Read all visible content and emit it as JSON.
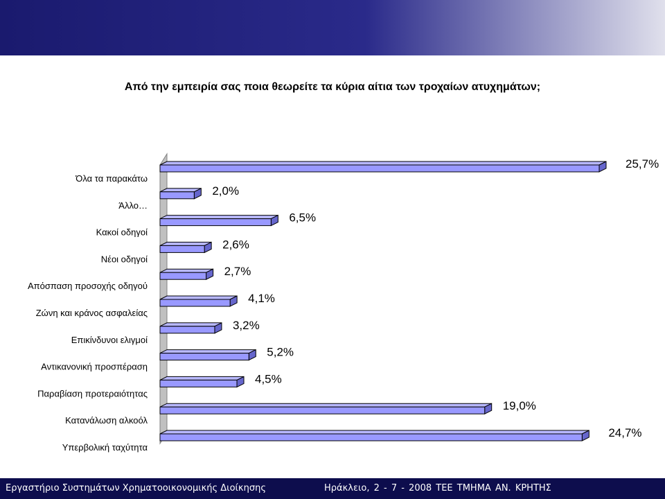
{
  "header": {
    "title": "Από την εμπειρία σας ποια θεωρείτε τα κύρια αίτια των τροχαίων ατυχημάτων;"
  },
  "chart_data": {
    "type": "bar",
    "orientation": "horizontal",
    "style": "3d",
    "title": "Από την εμπειρία σας ποια θεωρείτε τα κύρια αίτια των τροχαίων ατυχημάτων;",
    "xlabel": "",
    "ylabel": "",
    "categories": [
      "Όλα τα παρακάτω",
      "Άλλο…",
      "Κακοί οδηγοί",
      "Νέοι οδηγοί",
      "Απόσπαση προσοχής οδηγού",
      "Ζώνη και κράνος ασφαλείας",
      "Επικίνδυνοι ελιγμοί",
      "Αντικανονική προσπέραση",
      "Παραβίαση προτεραιότητας",
      "Κατανάλωση αλκοόλ",
      "Υπερβολική ταχύτητα"
    ],
    "values": [
      25.7,
      2.0,
      6.5,
      2.6,
      2.7,
      4.1,
      3.2,
      5.2,
      4.5,
      19.0,
      24.7
    ],
    "labels": [
      "25,7%",
      "2,0%",
      "6,5%",
      "2,6%",
      "2,7%",
      "4,1%",
      "3,2%",
      "5,2%",
      "4,5%",
      "19,0%",
      "24,7%"
    ],
    "unit": "%",
    "xlim": [
      0,
      25.7
    ],
    "grid": false,
    "legend": "none",
    "bar_color": "#9999ff",
    "bar_stroke": "#000000"
  },
  "footer": {
    "left": "Εργαστήριο Συστημάτων Χρηματοοικονομικής Διοίκησης",
    "right": "Ηράκλειο, 2 - 7 - 2008    ΤΕΕ ΤΜΗΜΑ ΑΝ. ΚΡΗΤΗΣ"
  }
}
